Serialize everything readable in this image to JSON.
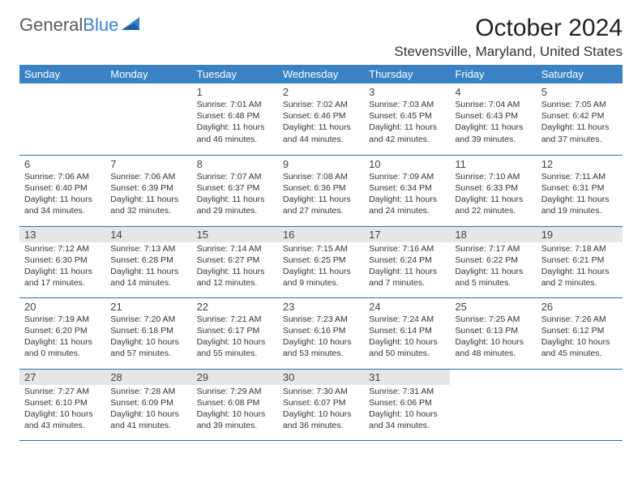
{
  "logo": {
    "part1": "General",
    "part2": "Blue"
  },
  "title": "October 2024",
  "location": "Stevensville, Maryland, United States",
  "colors": {
    "header_bg": "#3b82c4",
    "header_text": "#ffffff",
    "border": "#2f6fa8",
    "shade": "#e6e6e6",
    "logo_gray": "#5a5a5a",
    "logo_blue": "#3b82c4"
  },
  "day_headers": [
    "Sunday",
    "Monday",
    "Tuesday",
    "Wednesday",
    "Thursday",
    "Friday",
    "Saturday"
  ],
  "weeks": [
    [
      null,
      null,
      {
        "n": "1",
        "sr": "7:01 AM",
        "ss": "6:48 PM",
        "dl": "11 hours and 46 minutes."
      },
      {
        "n": "2",
        "sr": "7:02 AM",
        "ss": "6:46 PM",
        "dl": "11 hours and 44 minutes."
      },
      {
        "n": "3",
        "sr": "7:03 AM",
        "ss": "6:45 PM",
        "dl": "11 hours and 42 minutes."
      },
      {
        "n": "4",
        "sr": "7:04 AM",
        "ss": "6:43 PM",
        "dl": "11 hours and 39 minutes."
      },
      {
        "n": "5",
        "sr": "7:05 AM",
        "ss": "6:42 PM",
        "dl": "11 hours and 37 minutes."
      }
    ],
    [
      {
        "n": "6",
        "sr": "7:06 AM",
        "ss": "6:40 PM",
        "dl": "11 hours and 34 minutes."
      },
      {
        "n": "7",
        "sr": "7:06 AM",
        "ss": "6:39 PM",
        "dl": "11 hours and 32 minutes."
      },
      {
        "n": "8",
        "sr": "7:07 AM",
        "ss": "6:37 PM",
        "dl": "11 hours and 29 minutes."
      },
      {
        "n": "9",
        "sr": "7:08 AM",
        "ss": "6:36 PM",
        "dl": "11 hours and 27 minutes."
      },
      {
        "n": "10",
        "sr": "7:09 AM",
        "ss": "6:34 PM",
        "dl": "11 hours and 24 minutes."
      },
      {
        "n": "11",
        "sr": "7:10 AM",
        "ss": "6:33 PM",
        "dl": "11 hours and 22 minutes."
      },
      {
        "n": "12",
        "sr": "7:11 AM",
        "ss": "6:31 PM",
        "dl": "11 hours and 19 minutes."
      }
    ],
    [
      {
        "n": "13",
        "sr": "7:12 AM",
        "ss": "6:30 PM",
        "dl": "11 hours and 17 minutes.",
        "shaded": true
      },
      {
        "n": "14",
        "sr": "7:13 AM",
        "ss": "6:28 PM",
        "dl": "11 hours and 14 minutes.",
        "shaded": true
      },
      {
        "n": "15",
        "sr": "7:14 AM",
        "ss": "6:27 PM",
        "dl": "11 hours and 12 minutes.",
        "shaded": true
      },
      {
        "n": "16",
        "sr": "7:15 AM",
        "ss": "6:25 PM",
        "dl": "11 hours and 9 minutes.",
        "shaded": true
      },
      {
        "n": "17",
        "sr": "7:16 AM",
        "ss": "6:24 PM",
        "dl": "11 hours and 7 minutes.",
        "shaded": true
      },
      {
        "n": "18",
        "sr": "7:17 AM",
        "ss": "6:22 PM",
        "dl": "11 hours and 5 minutes.",
        "shaded": true
      },
      {
        "n": "19",
        "sr": "7:18 AM",
        "ss": "6:21 PM",
        "dl": "11 hours and 2 minutes.",
        "shaded": true
      }
    ],
    [
      {
        "n": "20",
        "sr": "7:19 AM",
        "ss": "6:20 PM",
        "dl": "11 hours and 0 minutes."
      },
      {
        "n": "21",
        "sr": "7:20 AM",
        "ss": "6:18 PM",
        "dl": "10 hours and 57 minutes."
      },
      {
        "n": "22",
        "sr": "7:21 AM",
        "ss": "6:17 PM",
        "dl": "10 hours and 55 minutes."
      },
      {
        "n": "23",
        "sr": "7:23 AM",
        "ss": "6:16 PM",
        "dl": "10 hours and 53 minutes."
      },
      {
        "n": "24",
        "sr": "7:24 AM",
        "ss": "6:14 PM",
        "dl": "10 hours and 50 minutes."
      },
      {
        "n": "25",
        "sr": "7:25 AM",
        "ss": "6:13 PM",
        "dl": "10 hours and 48 minutes."
      },
      {
        "n": "26",
        "sr": "7:26 AM",
        "ss": "6:12 PM",
        "dl": "10 hours and 45 minutes."
      }
    ],
    [
      {
        "n": "27",
        "sr": "7:27 AM",
        "ss": "6:10 PM",
        "dl": "10 hours and 43 minutes.",
        "shaded": true
      },
      {
        "n": "28",
        "sr": "7:28 AM",
        "ss": "6:09 PM",
        "dl": "10 hours and 41 minutes.",
        "shaded": true
      },
      {
        "n": "29",
        "sr": "7:29 AM",
        "ss": "6:08 PM",
        "dl": "10 hours and 39 minutes.",
        "shaded": true
      },
      {
        "n": "30",
        "sr": "7:30 AM",
        "ss": "6:07 PM",
        "dl": "10 hours and 36 minutes.",
        "shaded": true
      },
      {
        "n": "31",
        "sr": "7:31 AM",
        "ss": "6:06 PM",
        "dl": "10 hours and 34 minutes.",
        "shaded": true
      },
      null,
      null
    ]
  ],
  "labels": {
    "sunrise": "Sunrise: ",
    "sunset": "Sunset: ",
    "daylight": "Daylight: "
  }
}
